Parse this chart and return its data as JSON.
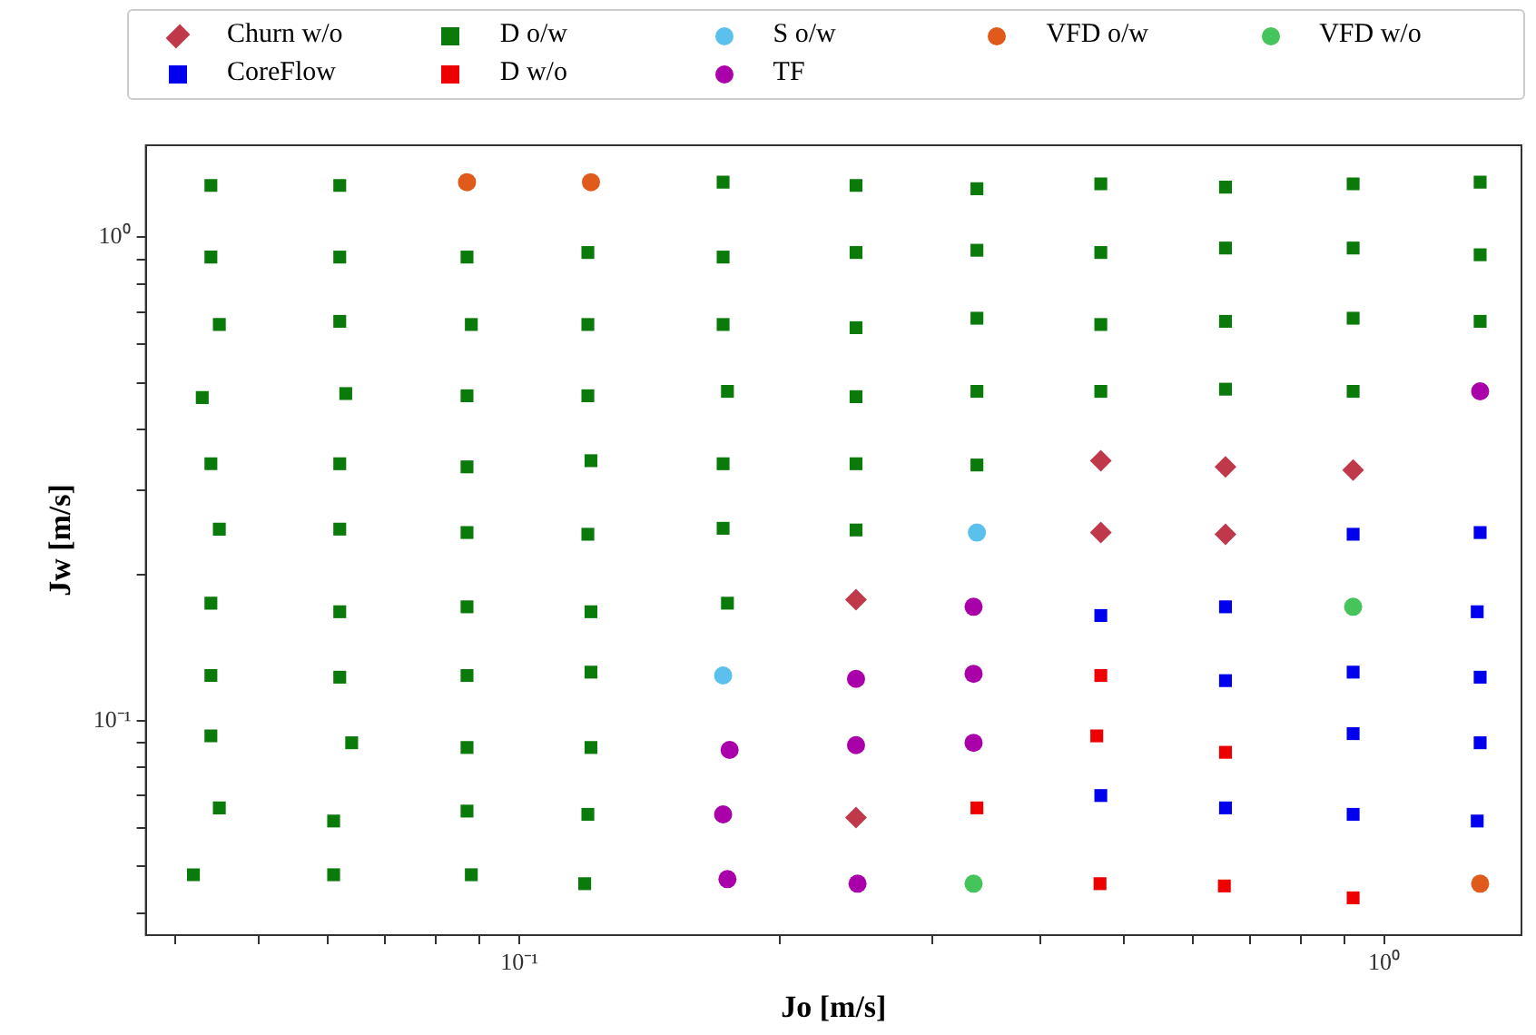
{
  "chart_data": {
    "type": "scatter",
    "xlabel": "Jo [m/s]",
    "ylabel": "Jw [m/s]",
    "log": "xy",
    "grid": false,
    "legend": "top",
    "xlim": [
      0.037,
      1.44
    ],
    "ylim": [
      0.036,
      1.55
    ],
    "xticks": [
      {
        "value": 0.04,
        "label": null
      },
      {
        "value": 0.05,
        "label": null
      },
      {
        "value": 0.06,
        "label": null
      },
      {
        "value": 0.07,
        "label": null
      },
      {
        "value": 0.08,
        "label": null
      },
      {
        "value": 0.09,
        "label": null
      },
      {
        "value": 0.1,
        "label": "10⁻¹"
      },
      {
        "value": 0.2,
        "label": null
      },
      {
        "value": 0.3,
        "label": null
      },
      {
        "value": 0.4,
        "label": null
      },
      {
        "value": 0.5,
        "label": null
      },
      {
        "value": 0.6,
        "label": null
      },
      {
        "value": 0.7,
        "label": null
      },
      {
        "value": 0.8,
        "label": null
      },
      {
        "value": 0.9,
        "label": null
      },
      {
        "value": 1,
        "label": "10⁰"
      }
    ],
    "yticks": [
      {
        "value": 0.04,
        "label": null
      },
      {
        "value": 0.05,
        "label": null
      },
      {
        "value": 0.06,
        "label": null
      },
      {
        "value": 0.07,
        "label": null
      },
      {
        "value": 0.08,
        "label": null
      },
      {
        "value": 0.09,
        "label": null
      },
      {
        "value": 0.1,
        "label": "10⁻¹"
      },
      {
        "value": 0.2,
        "label": null
      },
      {
        "value": 0.3,
        "label": null
      },
      {
        "value": 0.4,
        "label": null
      },
      {
        "value": 0.5,
        "label": null
      },
      {
        "value": 0.6,
        "label": null
      },
      {
        "value": 0.7,
        "label": null
      },
      {
        "value": 0.8,
        "label": null
      },
      {
        "value": 0.9,
        "label": null
      },
      {
        "value": 1,
        "label": "10⁰"
      }
    ],
    "series": [
      {
        "name": "Churn w/o",
        "color": "#c0394b",
        "marker": "diamond",
        "x": [
          0.47,
          0.655,
          0.92,
          0.47,
          0.655,
          0.245,
          0.245
        ],
        "values": [
          0.345,
          0.335,
          0.33,
          0.245,
          0.243,
          0.178,
          0.063
        ]
      },
      {
        "name": "D o/w",
        "color": "#0a7a0a",
        "marker": "square",
        "x": [
          0.044,
          0.062,
          0.172,
          0.245,
          0.338,
          0.47,
          0.655,
          0.92,
          1.29,
          0.044,
          0.062,
          0.087,
          0.12,
          0.172,
          0.245,
          0.338,
          0.47,
          0.655,
          0.92,
          1.29,
          0.045,
          0.062,
          0.088,
          0.12,
          0.172,
          0.245,
          0.338,
          0.47,
          0.655,
          0.92,
          1.29,
          0.043,
          0.063,
          0.087,
          0.12,
          0.174,
          0.245,
          0.338,
          0.47,
          0.655,
          0.92,
          0.044,
          0.062,
          0.087,
          0.121,
          0.172,
          0.245,
          0.338,
          0.045,
          0.062,
          0.087,
          0.12,
          0.172,
          0.245,
          0.044,
          0.062,
          0.087,
          0.121,
          0.174,
          0.044,
          0.062,
          0.087,
          0.121,
          0.044,
          0.064,
          0.087,
          0.121,
          0.045,
          0.061,
          0.087,
          0.12,
          0.042,
          0.061,
          0.088,
          0.119
        ],
        "values": [
          1.28,
          1.28,
          1.3,
          1.28,
          1.26,
          1.29,
          1.27,
          1.29,
          1.3,
          0.91,
          0.91,
          0.91,
          0.93,
          0.91,
          0.93,
          0.94,
          0.93,
          0.95,
          0.95,
          0.92,
          0.66,
          0.67,
          0.66,
          0.66,
          0.66,
          0.65,
          0.68,
          0.66,
          0.67,
          0.68,
          0.67,
          0.466,
          0.475,
          0.47,
          0.47,
          0.48,
          0.468,
          0.48,
          0.48,
          0.485,
          0.48,
          0.34,
          0.34,
          0.335,
          0.345,
          0.34,
          0.34,
          0.338,
          0.249,
          0.249,
          0.245,
          0.243,
          0.25,
          0.248,
          0.175,
          0.168,
          0.172,
          0.168,
          0.175,
          0.124,
          0.123,
          0.124,
          0.126,
          0.093,
          0.09,
          0.088,
          0.088,
          0.066,
          0.062,
          0.065,
          0.064,
          0.048,
          0.048,
          0.048,
          0.046
        ]
      },
      {
        "name": "S o/w",
        "color": "#5bc0eb",
        "marker": "circle",
        "x": [
          0.338,
          0.172
        ],
        "values": [
          0.245,
          0.124
        ]
      },
      {
        "name": "VFD o/w",
        "color": "#e05a1c",
        "marker": "circle",
        "x": [
          0.087,
          0.121,
          1.29
        ],
        "values": [
          1.3,
          1.3,
          0.046
        ]
      },
      {
        "name": "VFD w/o",
        "color": "#44c45a",
        "marker": "circle",
        "x": [
          0.92,
          0.335
        ],
        "values": [
          0.172,
          0.046
        ]
      },
      {
        "name": "CoreFlow",
        "color": "#0000ee",
        "marker": "square",
        "x": [
          0.92,
          1.29,
          0.47,
          0.655,
          1.28,
          0.655,
          0.92,
          1.29,
          0.92,
          1.29,
          0.47,
          0.655,
          0.92,
          1.28
        ],
        "values": [
          0.243,
          0.245,
          0.165,
          0.172,
          0.168,
          0.121,
          0.126,
          0.123,
          0.094,
          0.09,
          0.07,
          0.066,
          0.064,
          0.062
        ]
      },
      {
        "name": "D w/o",
        "color": "#ee0000",
        "marker": "square",
        "x": [
          0.47,
          0.465,
          0.655,
          0.338,
          0.469,
          0.653,
          0.92
        ],
        "values": [
          0.124,
          0.093,
          0.086,
          0.066,
          0.046,
          0.0455,
          0.043
        ]
      },
      {
        "name": "TF",
        "color": "#aa00aa",
        "marker": "circle",
        "x": [
          1.29,
          0.335,
          0.245,
          0.335,
          0.175,
          0.245,
          0.335,
          0.172,
          0.174,
          0.246
        ],
        "values": [
          0.48,
          0.172,
          0.122,
          0.125,
          0.087,
          0.089,
          0.09,
          0.064,
          0.047,
          0.046
        ]
      }
    ]
  }
}
